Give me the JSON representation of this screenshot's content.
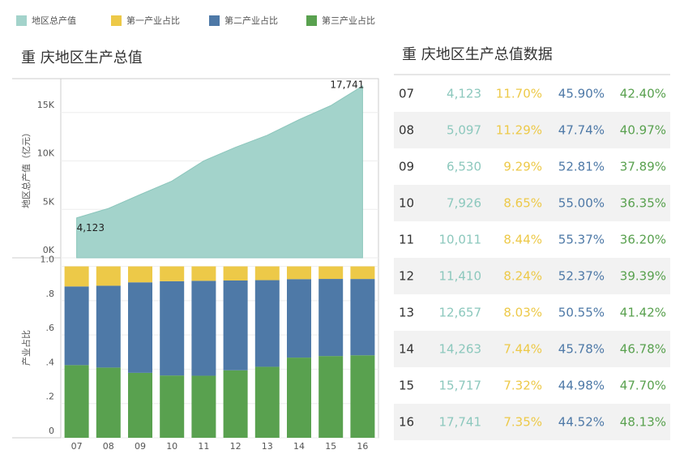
{
  "chart_data": [
    {
      "type": "area",
      "title": "重 庆地区生产总值",
      "ylabel": "地区总产值（亿元）",
      "series": [
        {
          "name": "地区总产值",
          "color": "#a3d3cb",
          "values": [
            4123,
            5097,
            6530,
            7926,
            10011,
            11410,
            12657,
            14263,
            15717,
            17741
          ],
          "value_labels": [
            "4,123",
            null,
            null,
            null,
            null,
            null,
            null,
            null,
            null,
            "17,741"
          ]
        }
      ],
      "ylim": [
        0,
        18500
      ],
      "yticks": [
        {
          "value": 0,
          "label": "0K"
        },
        {
          "value": 5000,
          "label": "5K"
        },
        {
          "value": 10000,
          "label": "10K"
        },
        {
          "value": 15000,
          "label": "15K"
        }
      ],
      "grid": true
    },
    {
      "type": "stacked_bar",
      "ylabel": "产业占比",
      "categories": [
        "07",
        "08",
        "09",
        "10",
        "11",
        "12",
        "13",
        "14",
        "15",
        "16"
      ],
      "series": [
        {
          "name": "第一产业占比",
          "color": "#edc948",
          "values": [
            0.117,
            0.1129,
            0.0929,
            0.0865,
            0.0844,
            0.0824,
            0.0803,
            0.0744,
            0.0732,
            0.0735
          ]
        },
        {
          "name": "第二产业占比",
          "color": "#4e79a7",
          "values": [
            0.459,
            0.4774,
            0.5281,
            0.55,
            0.5537,
            0.5237,
            0.5055,
            0.4578,
            0.4498,
            0.4452
          ]
        },
        {
          "name": "第三产业占比",
          "color": "#59a14f",
          "values": [
            0.424,
            0.4097,
            0.3789,
            0.3635,
            0.362,
            0.3939,
            0.4142,
            0.4678,
            0.477,
            0.4813
          ]
        }
      ],
      "ylim": [
        0,
        1.05
      ],
      "yticks": [
        0,
        {
          "value": 0.2,
          "label": ".2"
        },
        {
          "value": 0.4,
          "label": ".4"
        },
        {
          "value": 0.6,
          "label": ".6"
        },
        {
          "value": 0.8,
          "label": ".8"
        },
        {
          "value": 1.0,
          "label": "1.0"
        }
      ],
      "grid": true
    }
  ],
  "table": {
    "title": "重 庆地区生产总值数据",
    "rows": [
      [
        "07",
        "4,123",
        "11.70%",
        "45.90%",
        "42.40%"
      ],
      [
        "08",
        "5,097",
        "11.29%",
        "47.74%",
        "40.97%"
      ],
      [
        "09",
        "6,530",
        "9.29%",
        "52.81%",
        "37.89%"
      ],
      [
        "10",
        "7,926",
        "8.65%",
        "55.00%",
        "36.35%"
      ],
      [
        "11",
        "10,011",
        "8.44%",
        "55.37%",
        "36.20%"
      ],
      [
        "12",
        "11,410",
        "8.24%",
        "52.37%",
        "39.39%"
      ],
      [
        "13",
        "12,657",
        "8.03%",
        "50.55%",
        "41.42%"
      ],
      [
        "14",
        "14,263",
        "7.44%",
        "45.78%",
        "46.78%"
      ],
      [
        "15",
        "15,717",
        "7.32%",
        "44.98%",
        "47.70%"
      ],
      [
        "16",
        "17,741",
        "7.35%",
        "44.52%",
        "48.13%"
      ]
    ]
  }
}
